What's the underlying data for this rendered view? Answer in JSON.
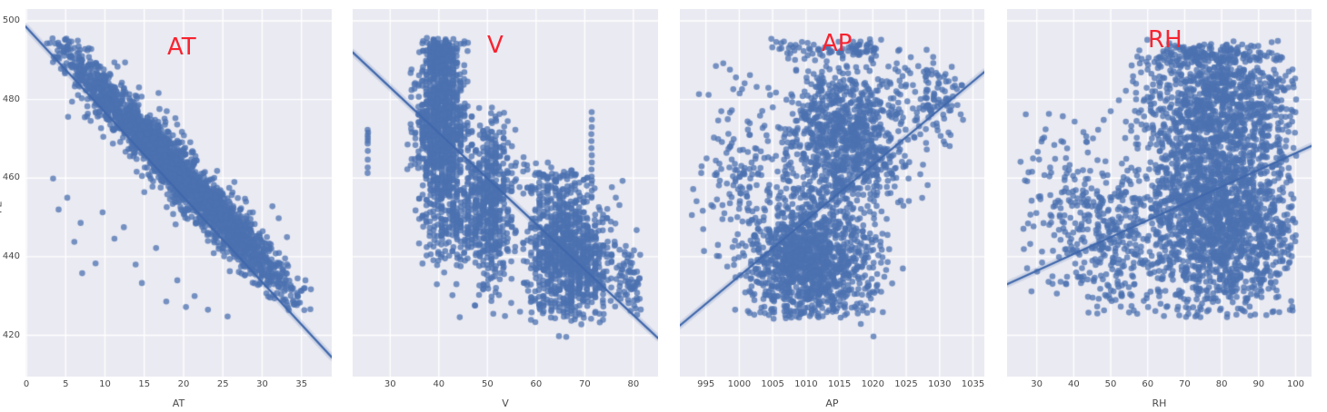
{
  "chart_data": {
    "type": "scatter",
    "title": "",
    "description": "Four seaborn regplot panels sharing one PE y-axis: PE vs AT, V, AP, RH",
    "style": {
      "plot_bg": "#eaeaf2",
      "grid_color": "#ffffff",
      "point_color_rgb": [
        76,
        114,
        176
      ],
      "point_alpha": 0.75,
      "point_radius": 3.3,
      "line_color": "#4168ac",
      "ci_color": "rgba(76,114,176,0.18)",
      "annotation_color": "#f62430",
      "tick_text_color": "#4a4a4a"
    },
    "y_axis": {
      "label": "PE",
      "ticks": [
        500,
        480,
        460,
        440,
        420
      ],
      "range": [
        409.5,
        503
      ]
    },
    "panels": [
      {
        "xlabel": "AT",
        "annotation": "AT",
        "x_ticks": [
          0,
          5,
          10,
          15,
          20,
          25,
          30,
          35
        ],
        "x_range": [
          -0.12,
          38.85
        ],
        "regression": {
          "x": [
            -0.12,
            38.85
          ],
          "pe": [
            498.6,
            414.4
          ]
        },
        "seed": 101,
        "scatter": [
          {
            "type": "band",
            "n": 2100,
            "x0": 2.2,
            "x1": 36.3,
            "slope": -2.1,
            "intercept": 502,
            "sd": 3.3,
            "clipy": [
              424.3,
              495.8
            ],
            "tri": true
          },
          {
            "type": "band",
            "n": 420,
            "x0": 3.0,
            "x1": 35.0,
            "slope": -2.1,
            "intercept": 502,
            "sd": 5.8,
            "clipy": [
              424.3,
              495.8
            ],
            "tri": true
          },
          {
            "type": "points",
            "pts": [
              [
                3.4,
                459.9
              ],
              [
                6.9,
                448.6
              ],
              [
                6.1,
                443.8
              ],
              [
                8.8,
                438.3
              ],
              [
                7.1,
                435.8
              ],
              [
                14.7,
                433.3
              ],
              [
                16.5,
                442.2
              ],
              [
                13.9,
                438
              ],
              [
                11.2,
                444.6
              ],
              [
                19.2,
                434
              ],
              [
                21.4,
                430
              ],
              [
                17.8,
                428.6
              ],
              [
                23.1,
                426.5
              ],
              [
                9.7,
                451.3
              ],
              [
                12.4,
                447.5
              ],
              [
                27.8,
                447.9
              ],
              [
                32.1,
                449.8
              ],
              [
                30.6,
                445
              ],
              [
                5.2,
                455
              ],
              [
                4.1,
                452
              ],
              [
                25.6,
                424.8
              ],
              [
                20.3,
                427.2
              ],
              [
                29.3,
                440.7
              ],
              [
                34.8,
                428.3
              ],
              [
                36.2,
                431.7
              ],
              [
                35.5,
                434
              ]
            ]
          }
        ]
      },
      {
        "xlabel": "V",
        "annotation": "V",
        "x_ticks": [
          30,
          40,
          50,
          60,
          70,
          80
        ],
        "x_range": [
          22.28,
          85.07
        ],
        "regression": {
          "x": [
            22.28,
            85.07
          ],
          "pe": [
            492.0,
            419.3
          ]
        },
        "seed": 202,
        "scatter": [
          {
            "type": "vline",
            "x": 25.4,
            "ys": [
              472.3,
              471.6,
              470.9,
              470.2,
              469.5,
              468.8,
              466.9,
              464.7,
              462.7,
              461.3
            ]
          },
          {
            "type": "blob",
            "n": 1050,
            "mx": 40.6,
            "sx": 2.6,
            "clipx": [
              33.6,
              46.6
            ],
            "my": 474,
            "sy": 12,
            "clipy": [
              443,
              495.8
            ],
            "snap": 0.78
          },
          {
            "type": "blob",
            "n": 160,
            "mx": 40.5,
            "sx": 1.6,
            "clipx": [
              37.4,
              44
            ],
            "my": 491,
            "sy": 2.6,
            "clipy": [
              486,
              495.8
            ],
            "snap": 0.78
          },
          {
            "type": "blob",
            "n": 190,
            "mx": 43.5,
            "sx": 3.4,
            "clipx": [
              36,
              50.5
            ],
            "my": 448,
            "sy": 6,
            "clipy": [
              430,
              461
            ],
            "snap": 0.78
          },
          {
            "type": "blob",
            "n": 560,
            "mx": 50.3,
            "sx": 2.6,
            "clipx": [
              45.6,
              56.2
            ],
            "my": 455,
            "sy": 11,
            "clipy": [
              427.5,
              478
            ],
            "snap": 0.82
          },
          {
            "type": "blob",
            "n": 980,
            "mx": 66.5,
            "sx": 4.6,
            "clipx": [
              57,
              77.6
            ],
            "my": 440,
            "sy": 8,
            "clipy": [
              423.3,
              462
            ],
            "snap": 0.82
          },
          {
            "type": "blob",
            "n": 90,
            "mx": 62,
            "sx": 3.2,
            "clipx": [
              57,
              70.5
            ],
            "my": 458,
            "sy": 4.2,
            "clipy": [
              449,
              467
            ],
            "snap": 0.82
          },
          {
            "type": "vline",
            "x": 71.4,
            "ys": [
              476.8,
              474.9,
              473,
              471.2,
              469.4,
              467.6,
              465.8,
              464,
              462.2,
              460.4,
              458.6,
              456.8,
              455
            ]
          },
          {
            "type": "blob",
            "n": 70,
            "mx": 79,
            "sx": 1.6,
            "clipx": [
              76.3,
              81.6
            ],
            "my": 433,
            "sy": 5.2,
            "clipy": [
              424,
              447
            ]
          },
          {
            "type": "points",
            "pts": [
              [
                64.7,
                419.8
              ],
              [
                66.2,
                419.6
              ],
              [
                69.3,
                422.8
              ],
              [
                53.6,
                424.9
              ],
              [
                47.4,
                427.6
              ],
              [
                44.3,
                424.6
              ],
              [
                81.2,
                434.4
              ],
              [
                56.7,
                426
              ],
              [
                51.2,
                425.5
              ],
              [
                42.8,
                430.2
              ],
              [
                41.1,
                436
              ],
              [
                39.6,
                433
              ]
            ]
          }
        ]
      },
      {
        "xlabel": "AP",
        "annotation": "AP",
        "x_ticks": [
          995,
          1000,
          1005,
          1010,
          1015,
          1020,
          1025,
          1030,
          1035
        ],
        "x_range": [
          991.1,
          1036.7
        ],
        "regression": {
          "x": [
            991.1,
            1036.7
          ],
          "pe": [
            422.5,
            487.0
          ]
        },
        "seed": 303,
        "scatter": [
          {
            "type": "blob",
            "n": 1250,
            "mx": 1010.6,
            "sx": 4.7,
            "clipx": [
              999,
              1022.5
            ],
            "my": 438.5,
            "sy": 8,
            "clipy": [
              424.2,
              459
            ]
          },
          {
            "type": "blob",
            "n": 1000,
            "mx": 1015.8,
            "sx": 5.1,
            "clipx": [
              1002,
              1028.5
            ],
            "my": 470,
            "sy": 10.5,
            "clipy": [
              452,
              493.5
            ]
          },
          {
            "type": "blob",
            "n": 120,
            "mx": 1000.2,
            "sx": 2.9,
            "clipx": [
              992.9,
              1006
            ],
            "my": 459,
            "sy": 10,
            "clipy": [
              438,
              483
            ]
          },
          {
            "type": "blob",
            "n": 95,
            "mx": 1029.3,
            "sx": 2.1,
            "clipx": [
              1024.5,
              1033.6
            ],
            "my": 479.5,
            "sy": 5,
            "clipy": [
              467,
              491
            ]
          },
          {
            "type": "blob",
            "n": 70,
            "mx": 1015.5,
            "sx": 4.5,
            "clipx": [
              1004,
              1026
            ],
            "my": 492.3,
            "sy": 1.6,
            "clipy": [
              489.8,
              495.6
            ]
          },
          {
            "type": "points",
            "pts": [
              [
                996.5,
                488.5
              ],
              [
                997.6,
                489.2
              ],
              [
                998.6,
                487.6
              ],
              [
                999.5,
                485.6
              ],
              [
                1000.8,
                484.1
              ],
              [
                1001.6,
                486.2
              ],
              [
                995.4,
                481.2
              ],
              [
                999.1,
                482.6
              ],
              [
                1002.6,
                483.2
              ],
              [
                993.1,
                457.2
              ],
              [
                993.6,
                454.1
              ],
              [
                994.3,
                461.3
              ],
              [
                992.9,
                450.6
              ],
              [
                995.1,
                465
              ],
              [
                996.2,
                470.3
              ],
              [
                994.6,
                447
              ],
              [
                1020.1,
                419.7
              ],
              [
                1018.2,
                422.9
              ],
              [
                1022.9,
                433.2
              ],
              [
                1024.5,
                437
              ],
              [
                996.8,
                443
              ],
              [
                998.2,
                437.5
              ]
            ]
          }
        ]
      },
      {
        "xlabel": "RH",
        "annotation": "RH",
        "x_ticks": [
          30,
          40,
          50,
          60,
          70,
          80,
          90,
          100
        ],
        "x_range": [
          21.97,
          104.3
        ],
        "regression": {
          "x": [
            21.97,
            104.3
          ],
          "pe": [
            433.0,
            468.2
          ]
        },
        "seed": 404,
        "scatter": [
          {
            "type": "blob",
            "n": 1900,
            "mx": 79,
            "sx": 11.5,
            "clipx": [
              47,
              100.2
            ],
            "my": 450,
            "sy": 13.5,
            "clipy": [
              424.5,
              487
            ]
          },
          {
            "type": "blob",
            "n": 850,
            "mx": 80,
            "sx": 10,
            "clipx": [
              54,
              100.2
            ],
            "my": 479,
            "sy": 8,
            "clipy": [
              461,
              494
            ]
          },
          {
            "type": "blob",
            "n": 130,
            "mx": 75,
            "sx": 10,
            "clipx": [
              57,
              97
            ],
            "my": 491.3,
            "sy": 1.7,
            "clipy": [
              488.5,
              495.2
            ]
          },
          {
            "type": "blob",
            "n": 140,
            "mx": 38,
            "sx": 6.3,
            "clipx": [
              25.6,
              50
            ],
            "my": 452,
            "sy": 11,
            "clipy": [
              428.5,
              479
            ]
          },
          {
            "type": "blob",
            "n": 210,
            "mx": 50.5,
            "sx": 5,
            "clipx": [
              40,
              59
            ],
            "my": 444,
            "sy": 9,
            "clipy": [
              425.5,
              467
            ]
          },
          {
            "type": "points",
            "pts": [
              [
                45.2,
                470.1
              ],
              [
                46.6,
                472.3
              ],
              [
                48.1,
                474.8
              ],
              [
                50,
                477
              ],
              [
                52.2,
                479.8
              ],
              [
                54.1,
                482.2
              ],
              [
                56,
                484.6
              ],
              [
                58.2,
                486.9
              ],
              [
                60.1,
                488.8
              ],
              [
                63,
                490.7
              ],
              [
                66.1,
                491.9
              ],
              [
                69.8,
                492.8
              ],
              [
                43.8,
                466.5
              ],
              [
                42.5,
                462
              ],
              [
                27.4,
                459.2
              ],
              [
                26.4,
                447.1
              ],
              [
                30.1,
                436.2
              ],
              [
                33.2,
                433.6
              ],
              [
                29,
                465
              ],
              [
                31.5,
                470
              ]
            ]
          }
        ]
      }
    ]
  }
}
